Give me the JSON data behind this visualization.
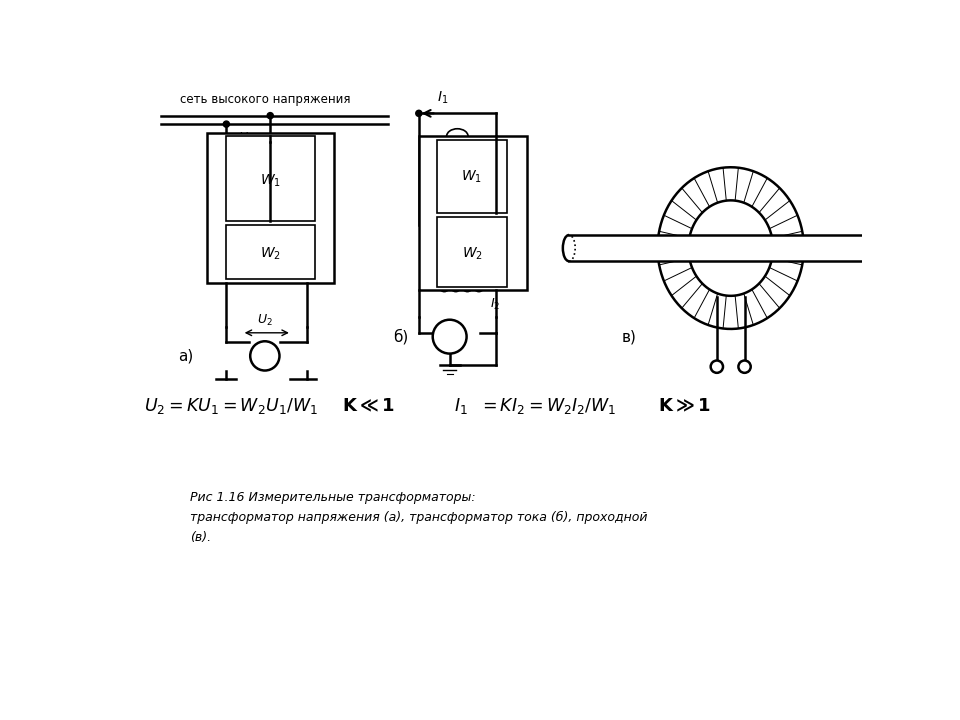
{
  "bg_color": "#ffffff",
  "text_color": "#000000",
  "line_color": "#000000",
  "title_net": "сеть высокого напряжения",
  "label_a": "а)",
  "label_b": "б)",
  "label_v": "в)",
  "caption": "Рис 1.16 Измерительные трансформаторы:\nтрансформатор напряжения (а), трансформатор тока (б), проходной\n(в)."
}
